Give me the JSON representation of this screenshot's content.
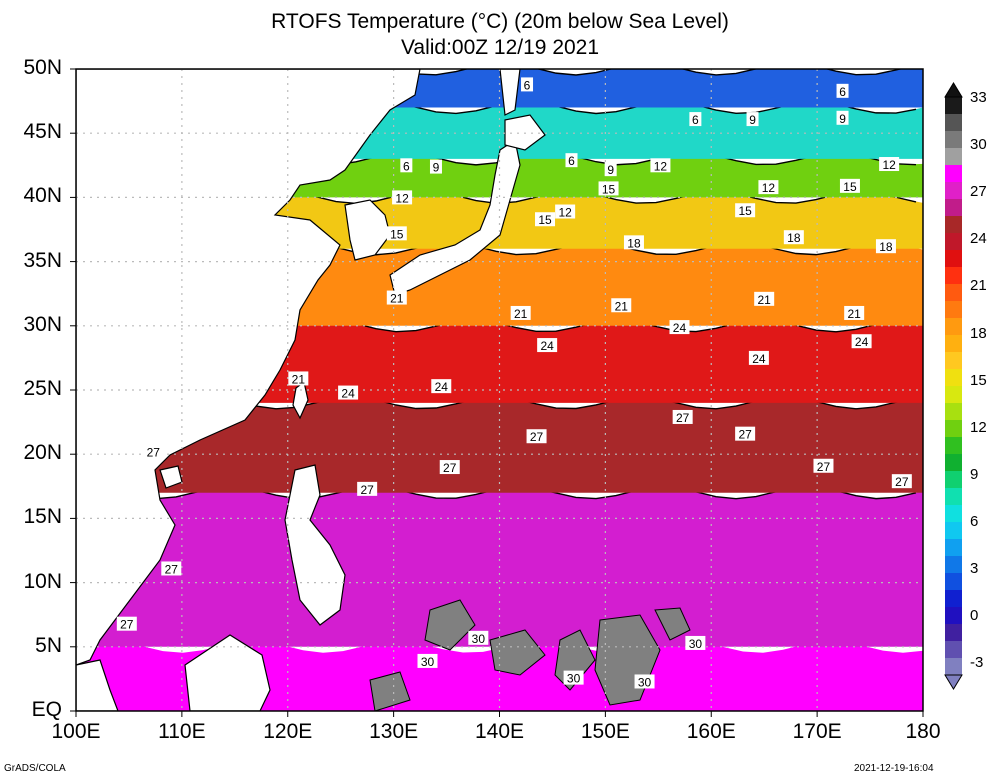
{
  "title_line1": "RTOFS Temperature (°C) (20m below Sea Level)",
  "title_line2": "Valid:00Z 12/19 2021",
  "lat_labels": [
    "50N",
    "45N",
    "40N",
    "35N",
    "30N",
    "25N",
    "20N",
    "15N",
    "10N",
    "5N",
    "EQ"
  ],
  "lon_labels": [
    "100E",
    "110E",
    "120E",
    "130E",
    "140E",
    "150E",
    "160E",
    "170E",
    "180"
  ],
  "colorbar": {
    "labels": [
      "33",
      "30",
      "27",
      "24",
      "21",
      "18",
      "15",
      "12",
      "9",
      "6",
      "3",
      "0",
      "-3"
    ],
    "colors": [
      "#1a1a1a",
      "#555555",
      "#7a7a7a",
      "#a0a0a0",
      "#ff00ff",
      "#e020c8",
      "#c11c8a",
      "#a82828",
      "#c0182a",
      "#e01010",
      "#ff3010",
      "#ff5a10",
      "#ff7a10",
      "#ff9a10",
      "#ffb010",
      "#ffc820",
      "#f0e010",
      "#d8e810",
      "#a8e010",
      "#70d010",
      "#30c020",
      "#10b030",
      "#10d070",
      "#10e0b0",
      "#10e0e0",
      "#10c8f0",
      "#10a0f0",
      "#1078e8",
      "#1050e0",
      "#1020d0",
      "#2010c0",
      "#4020a0",
      "#6050b0",
      "#8080c0"
    ]
  },
  "map": {
    "lon_range": [
      100,
      180
    ],
    "lat_range": [
      0,
      50
    ],
    "temperature_bands": [
      {
        "from_lat": 0,
        "to_lat": 5,
        "color": "#ff00ff"
      },
      {
        "from_lat": 5,
        "to_lat": 17,
        "color": "#d31ed0"
      },
      {
        "from_lat": 17,
        "to_lat": 24,
        "color": "#a8282a"
      },
      {
        "from_lat": 24,
        "to_lat": 30,
        "color": "#e01818"
      },
      {
        "from_lat": 30,
        "to_lat": 36,
        "color": "#ff8a10"
      },
      {
        "from_lat": 36,
        "to_lat": 40,
        "color": "#f2c814"
      },
      {
        "from_lat": 40,
        "to_lat": 43,
        "color": "#70d010"
      },
      {
        "from_lat": 43,
        "to_lat": 47,
        "color": "#20d8c8"
      },
      {
        "from_lat": 47,
        "to_lat": 50,
        "color": "#2060e0"
      }
    ],
    "contour_labels": [
      {
        "text": "6",
        "lon": 142.6,
        "lat": 48.8
      },
      {
        "text": "6",
        "lon": 131.2,
        "lat": 42.5
      },
      {
        "text": "6",
        "lon": 146.8,
        "lat": 42.9
      },
      {
        "text": "6",
        "lon": 158.5,
        "lat": 46.1
      },
      {
        "text": "6",
        "lon": 172.4,
        "lat": 48.3
      },
      {
        "text": "9",
        "lon": 134.0,
        "lat": 42.4
      },
      {
        "text": "9",
        "lon": 150.5,
        "lat": 42.2
      },
      {
        "text": "9",
        "lon": 163.9,
        "lat": 46.1
      },
      {
        "text": "9",
        "lon": 172.4,
        "lat": 46.2
      },
      {
        "text": "12",
        "lon": 130.8,
        "lat": 40.0
      },
      {
        "text": "12",
        "lon": 146.2,
        "lat": 38.9
      },
      {
        "text": "12",
        "lon": 155.2,
        "lat": 42.5
      },
      {
        "text": "12",
        "lon": 165.4,
        "lat": 40.8
      },
      {
        "text": "12",
        "lon": 176.8,
        "lat": 42.6
      },
      {
        "text": "15",
        "lon": 130.3,
        "lat": 37.2
      },
      {
        "text": "15",
        "lon": 144.3,
        "lat": 38.3
      },
      {
        "text": "15",
        "lon": 150.3,
        "lat": 40.7
      },
      {
        "text": "15",
        "lon": 163.2,
        "lat": 39.0
      },
      {
        "text": "15",
        "lon": 173.1,
        "lat": 40.9
      },
      {
        "text": "18",
        "lon": 152.7,
        "lat": 36.5
      },
      {
        "text": "18",
        "lon": 167.8,
        "lat": 36.9
      },
      {
        "text": "18",
        "lon": 176.5,
        "lat": 36.2
      },
      {
        "text": "21",
        "lon": 130.3,
        "lat": 32.2
      },
      {
        "text": "21",
        "lon": 121.0,
        "lat": 25.9
      },
      {
        "text": "21",
        "lon": 142.0,
        "lat": 31.0
      },
      {
        "text": "21",
        "lon": 151.5,
        "lat": 31.6
      },
      {
        "text": "21",
        "lon": 165.0,
        "lat": 32.1
      },
      {
        "text": "21",
        "lon": 173.5,
        "lat": 31.0
      },
      {
        "text": "24",
        "lon": 125.7,
        "lat": 24.8
      },
      {
        "text": "24",
        "lon": 134.5,
        "lat": 25.3
      },
      {
        "text": "24",
        "lon": 144.5,
        "lat": 28.5
      },
      {
        "text": "24",
        "lon": 157.0,
        "lat": 29.9
      },
      {
        "text": "24",
        "lon": 164.5,
        "lat": 27.5
      },
      {
        "text": "24",
        "lon": 174.2,
        "lat": 28.8
      },
      {
        "text": "27",
        "lon": 107.3,
        "lat": 20.2
      },
      {
        "text": "27",
        "lon": 109.0,
        "lat": 11.1
      },
      {
        "text": "27",
        "lon": 104.8,
        "lat": 6.8
      },
      {
        "text": "27",
        "lon": 127.5,
        "lat": 17.3
      },
      {
        "text": "27",
        "lon": 135.3,
        "lat": 19.0
      },
      {
        "text": "27",
        "lon": 143.5,
        "lat": 21.4
      },
      {
        "text": "27",
        "lon": 157.3,
        "lat": 22.9
      },
      {
        "text": "27",
        "lon": 163.2,
        "lat": 21.6
      },
      {
        "text": "27",
        "lon": 170.6,
        "lat": 19.1
      },
      {
        "text": "27",
        "lon": 178.0,
        "lat": 17.9
      },
      {
        "text": "30",
        "lon": 138.0,
        "lat": 5.7
      },
      {
        "text": "30",
        "lon": 133.2,
        "lat": 3.9
      },
      {
        "text": "30",
        "lon": 147.0,
        "lat": 2.6
      },
      {
        "text": "30",
        "lon": 153.7,
        "lat": 2.3
      },
      {
        "text": "30",
        "lon": 158.5,
        "lat": 5.3
      }
    ]
  },
  "footer_left": "GrADS/COLA",
  "footer_right": "2021-12-19-16:04"
}
